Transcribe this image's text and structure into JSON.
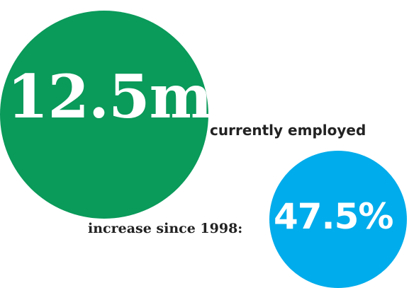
{
  "stats": [
    {
      "value": "12.5m",
      "label": "currently employed",
      "color": "#0a9a5a"
    },
    {
      "value": "47.5%",
      "label": "increase since 1998:",
      "color": "#00aceb"
    }
  ]
}
